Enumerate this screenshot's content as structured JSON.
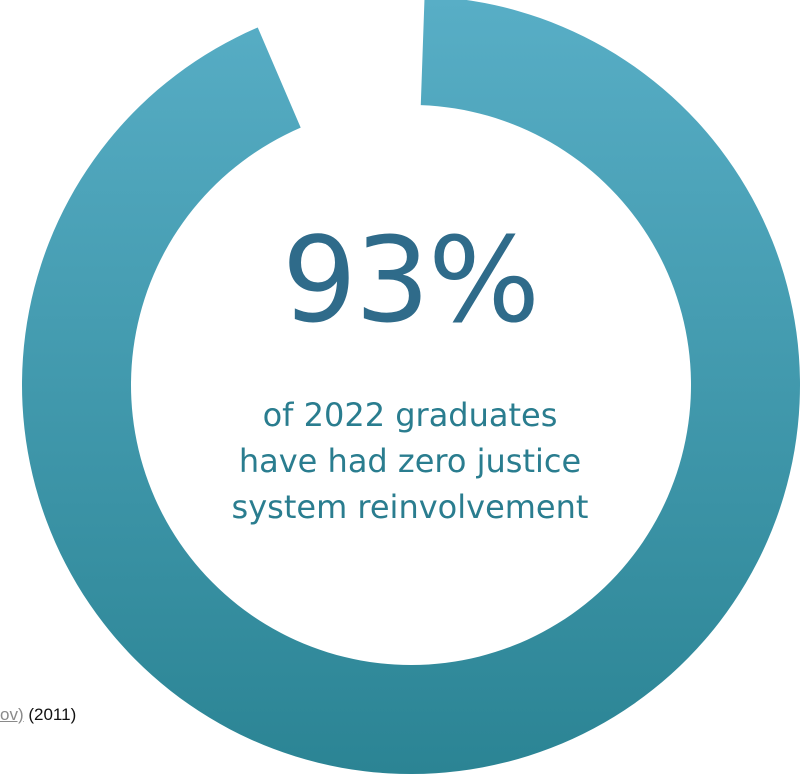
{
  "chart_data": {
    "type": "donut",
    "value_percent": 93,
    "label": "93%",
    "caption_lines": [
      "of 2022 graduates",
      "have had zero justice",
      "system reinvolvement"
    ]
  },
  "footnote": {
    "link_text": "ov)",
    "year_text": "(2011)"
  },
  "colors": {
    "ring_gradient_top": "#58aec6",
    "ring_gradient_bottom": "#2b8494",
    "value_text": "#2f6b8a",
    "caption_text": "#2a7d8f"
  }
}
